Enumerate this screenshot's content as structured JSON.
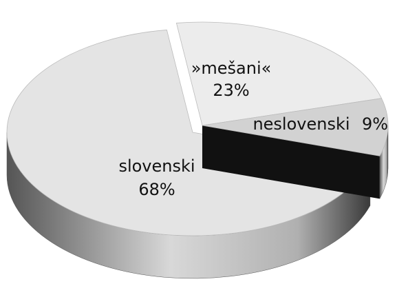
{
  "chart_data": {
    "type": "pie",
    "categories": [
      "slovenski",
      "»mešani«",
      "neslovenski"
    ],
    "values": [
      68,
      23,
      9
    ],
    "value_labels": [
      "68%",
      "23%",
      "9%"
    ],
    "colors": [
      "#e4e4e4",
      "#ececec",
      "#d2d2d2"
    ]
  }
}
